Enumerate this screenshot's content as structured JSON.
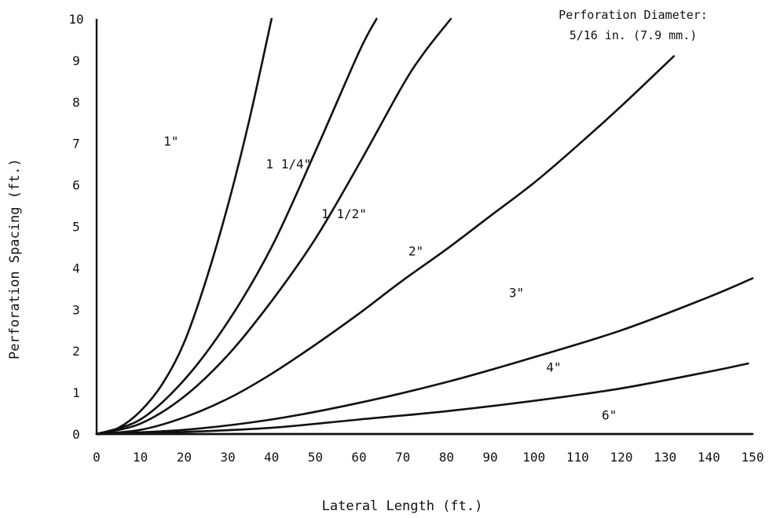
{
  "chart_data": {
    "type": "line",
    "xlabel": "Lateral Length (ft.)",
    "ylabel": "Perforation Spacing (ft.)",
    "xlim": [
      0,
      150
    ],
    "ylim": [
      0,
      10
    ],
    "xticks": [
      0,
      10,
      20,
      30,
      40,
      50,
      60,
      70,
      80,
      90,
      100,
      110,
      120,
      130,
      140,
      150
    ],
    "yticks": [
      0,
      1,
      2,
      3,
      4,
      5,
      6,
      7,
      8,
      9,
      10
    ],
    "grid": false,
    "annotation": {
      "line1": "Perforation Diameter:",
      "line2": "5/16 in. (7.9 mm.)"
    },
    "series": [
      {
        "name": "1\"",
        "x": [
          0,
          5,
          10,
          15,
          20,
          25,
          30,
          35,
          40
        ],
        "y": [
          0,
          0.15,
          0.55,
          1.2,
          2.2,
          3.7,
          5.5,
          7.6,
          10
        ]
      },
      {
        "name": "1 1/4\"",
        "x": [
          0,
          10,
          20,
          30,
          40,
          50,
          60,
          64
        ],
        "y": [
          0,
          0.35,
          1.3,
          2.7,
          4.5,
          6.8,
          9.2,
          10
        ]
      },
      {
        "name": "1 1/2\"",
        "x": [
          0,
          10,
          20,
          30,
          40,
          50,
          60,
          70,
          75,
          81
        ],
        "y": [
          0,
          0.25,
          0.9,
          1.9,
          3.2,
          4.7,
          6.5,
          8.4,
          9.2,
          10
        ]
      },
      {
        "name": "2\"",
        "x": [
          0,
          10,
          20,
          30,
          40,
          50,
          60,
          70,
          80,
          90,
          100,
          110,
          120,
          132
        ],
        "y": [
          0,
          0.1,
          0.4,
          0.85,
          1.45,
          2.15,
          2.9,
          3.7,
          4.45,
          5.25,
          6.05,
          6.95,
          7.9,
          9.1
        ]
      },
      {
        "name": "3\"",
        "x": [
          0,
          20,
          40,
          60,
          80,
          100,
          120,
          140,
          150
        ],
        "y": [
          0,
          0.1,
          0.35,
          0.75,
          1.25,
          1.85,
          2.5,
          3.3,
          3.75
        ]
      },
      {
        "name": "4\"",
        "x": [
          0,
          20,
          40,
          60,
          80,
          100,
          120,
          140,
          149
        ],
        "y": [
          0,
          0.05,
          0.15,
          0.35,
          0.55,
          0.8,
          1.1,
          1.5,
          1.7
        ]
      },
      {
        "name": "6\"",
        "x": [
          0,
          50,
          100,
          150
        ],
        "y": [
          0,
          0,
          0,
          0
        ]
      }
    ],
    "series_labels": [
      {
        "text": "1\"",
        "x": 15.3,
        "y": 6.95
      },
      {
        "text": "1 1/4\"",
        "x": 38.7,
        "y": 6.4
      },
      {
        "text": "1 1/2\"",
        "x": 51.4,
        "y": 5.2
      },
      {
        "text": "2\"",
        "x": 71.3,
        "y": 4.3
      },
      {
        "text": "3\"",
        "x": 94.3,
        "y": 3.3
      },
      {
        "text": "4\"",
        "x": 102.8,
        "y": 1.5
      },
      {
        "text": "6\"",
        "x": 115.5,
        "y": 0.35
      }
    ]
  }
}
